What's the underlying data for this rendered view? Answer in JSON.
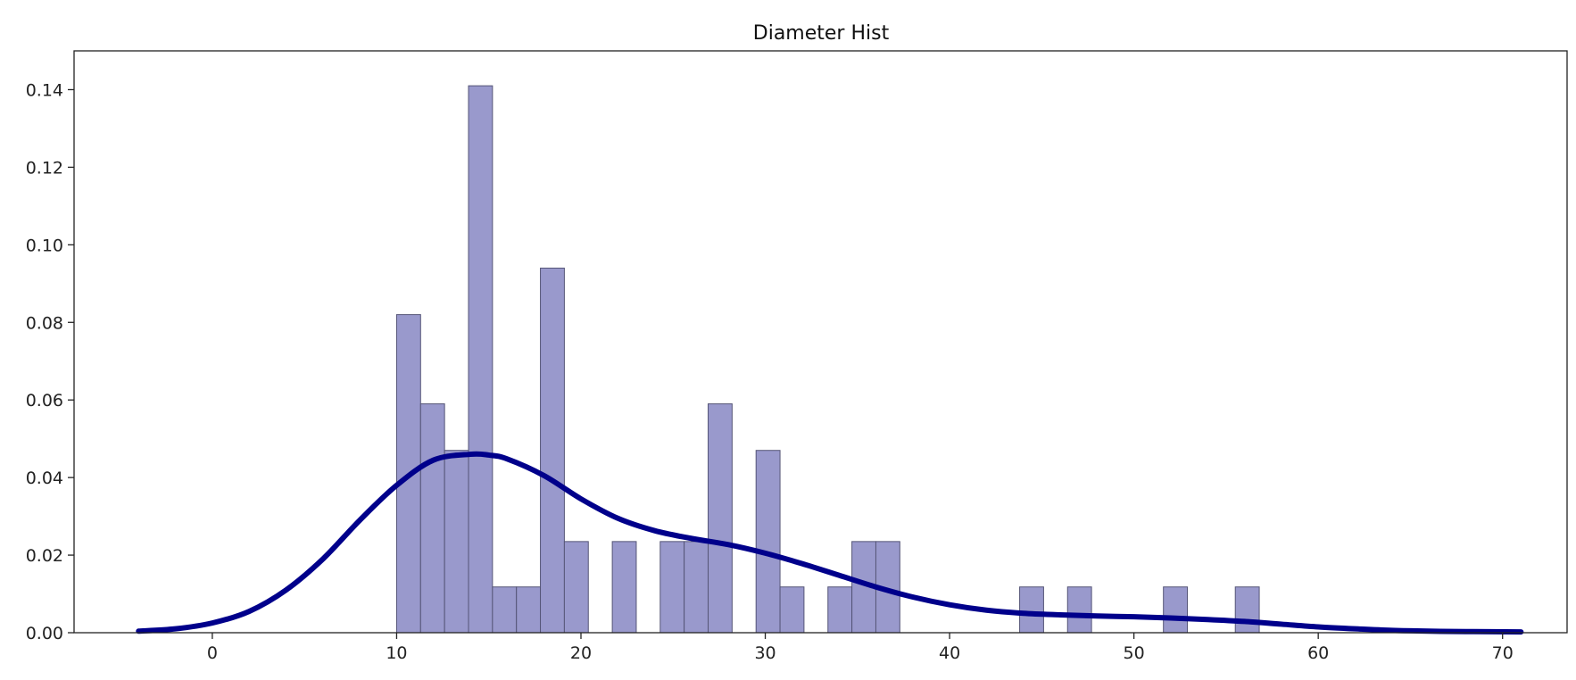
{
  "chart_data": {
    "type": "bar",
    "title": "Diameter Hist",
    "xlabel": "",
    "ylabel": "",
    "xlim": [
      -7.5,
      73.5
    ],
    "ylim": [
      0,
      0.15
    ],
    "x_ticks": [
      0,
      10,
      20,
      30,
      40,
      50,
      60,
      70
    ],
    "x_tick_labels": [
      "0",
      "10",
      "20",
      "30",
      "40",
      "50",
      "60",
      "70"
    ],
    "y_ticks": [
      0,
      0.02,
      0.04,
      0.06,
      0.08,
      0.1,
      0.12,
      0.14
    ],
    "y_tick_labels": [
      "0.00",
      "0.02",
      "0.04",
      "0.06",
      "0.08",
      "0.10",
      "0.12",
      "0.14"
    ],
    "grid": false,
    "bar_color": "#9999cc",
    "bar_edge_color": "#555577",
    "bars": [
      {
        "x0": 10.0,
        "x1": 11.3,
        "density": 0.082
      },
      {
        "x0": 11.3,
        "x1": 12.6,
        "density": 0.059
      },
      {
        "x0": 12.6,
        "x1": 13.9,
        "density": 0.047
      },
      {
        "x0": 13.9,
        "x1": 15.2,
        "density": 0.141
      },
      {
        "x0": 15.2,
        "x1": 16.5,
        "density": 0.0118
      },
      {
        "x0": 16.5,
        "x1": 17.8,
        "density": 0.0118
      },
      {
        "x0": 17.8,
        "x1": 19.1,
        "density": 0.094
      },
      {
        "x0": 19.1,
        "x1": 20.4,
        "density": 0.0235
      },
      {
        "x0": 21.7,
        "x1": 23.0,
        "density": 0.0235
      },
      {
        "x0": 24.3,
        "x1": 25.6,
        "density": 0.0235
      },
      {
        "x0": 25.6,
        "x1": 26.9,
        "density": 0.0235
      },
      {
        "x0": 26.9,
        "x1": 28.2,
        "density": 0.059
      },
      {
        "x0": 29.5,
        "x1": 30.8,
        "density": 0.047
      },
      {
        "x0": 30.8,
        "x1": 32.1,
        "density": 0.0118
      },
      {
        "x0": 33.4,
        "x1": 34.7,
        "density": 0.0118
      },
      {
        "x0": 34.7,
        "x1": 36.0,
        "density": 0.0235
      },
      {
        "x0": 36.0,
        "x1": 37.3,
        "density": 0.0235
      },
      {
        "x0": 43.8,
        "x1": 45.1,
        "density": 0.0118
      },
      {
        "x0": 46.4,
        "x1": 47.7,
        "density": 0.0118
      },
      {
        "x0": 51.6,
        "x1": 52.9,
        "density": 0.0118
      },
      {
        "x0": 55.5,
        "x1": 56.8,
        "density": 0.0118
      }
    ],
    "kde": {
      "color": "#00008b",
      "x": [
        -4,
        -2,
        0,
        2,
        4,
        6,
        8,
        10,
        12,
        14,
        15,
        16,
        18,
        20,
        22,
        24,
        26,
        28,
        30,
        32,
        34,
        36,
        38,
        40,
        42,
        44,
        46,
        48,
        50,
        52,
        54,
        56,
        58,
        60,
        62,
        64,
        66,
        68,
        71
      ],
      "y": [
        0.0004,
        0.001,
        0.0025,
        0.0055,
        0.011,
        0.019,
        0.029,
        0.038,
        0.0445,
        0.046,
        0.0458,
        0.0448,
        0.0405,
        0.0345,
        0.0295,
        0.0263,
        0.0243,
        0.0227,
        0.0205,
        0.0178,
        0.0148,
        0.0118,
        0.0092,
        0.0072,
        0.0058,
        0.005,
        0.0046,
        0.0043,
        0.0041,
        0.0038,
        0.0034,
        0.0029,
        0.0022,
        0.0015,
        0.001,
        0.0006,
        0.0004,
        0.0003,
        0.0002
      ]
    }
  }
}
